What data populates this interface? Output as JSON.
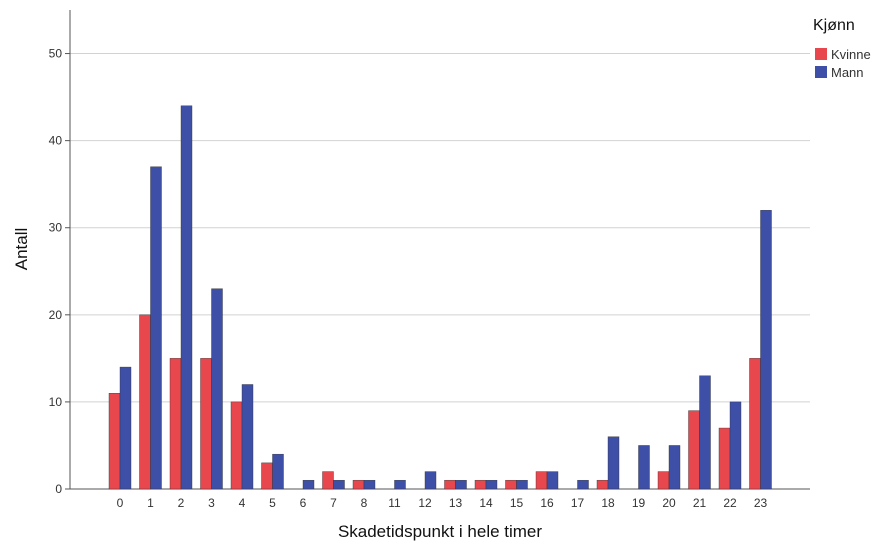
{
  "chart_data": {
    "type": "bar",
    "title": "",
    "xlabel": "Skadetidspunkt i hele timer",
    "ylabel": "Antall",
    "ylim": [
      0,
      55
    ],
    "yticks": [
      0,
      10,
      20,
      30,
      40,
      50
    ],
    "grid": true,
    "legend_position": "top-right",
    "legend_title": "Kjønn",
    "categories": [
      "0",
      "1",
      "2",
      "3",
      "4",
      "5",
      "6",
      "7",
      "8",
      "11",
      "12",
      "13",
      "14",
      "15",
      "16",
      "17",
      "18",
      "19",
      "20",
      "21",
      "22",
      "23"
    ],
    "series": [
      {
        "name": "Kvinne",
        "color": "#e8474d",
        "values": [
          11,
          20,
          15,
          15,
          10,
          3,
          0,
          2,
          1,
          0,
          0,
          1,
          1,
          1,
          2,
          0,
          1,
          0,
          2,
          9,
          7,
          15
        ]
      },
      {
        "name": "Mann",
        "color": "#3e4fa8",
        "values": [
          14,
          37,
          44,
          23,
          12,
          4,
          1,
          1,
          1,
          1,
          2,
          1,
          1,
          1,
          2,
          1,
          6,
          5,
          5,
          13,
          10,
          32
        ]
      }
    ]
  }
}
